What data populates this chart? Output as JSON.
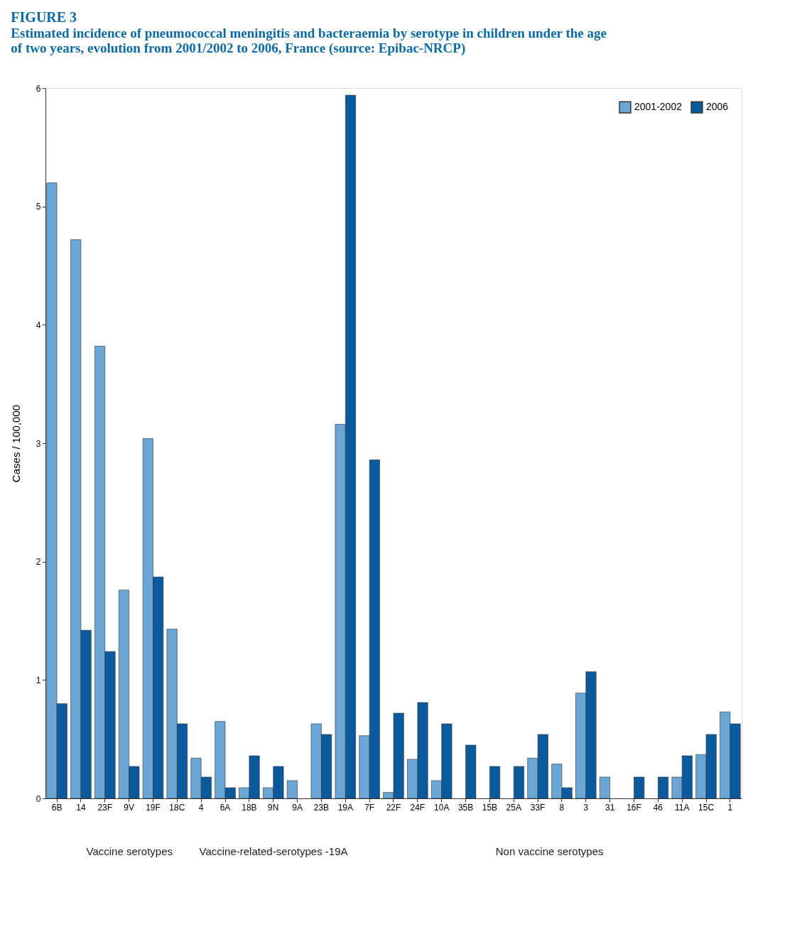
{
  "chart_data": {
    "type": "bar",
    "title": "FIGURE 3",
    "subtitle": "Estimated incidence of pneumococcal meningitis and bacteraemia by serotype in children under the age of two years, evolution from 2001/2002 to 2006, France (source: Epibac-NRCP)",
    "ylabel": "Cases / 100,000",
    "categories": [
      "6B",
      "14",
      "23F",
      "9V",
      "19F",
      "18C",
      "4",
      "6A",
      "18B",
      "9N",
      "9A",
      "23B",
      "19A",
      "7F",
      "22F",
      "24F",
      "10A",
      "35B",
      "15B",
      "25A",
      "33F",
      "8",
      "3",
      "31",
      "16F",
      "46",
      "11A",
      "15C",
      "1"
    ],
    "series": [
      {
        "name": "2001-2002",
        "color": "#6aa6d6",
        "values": [
          5.2,
          4.72,
          3.82,
          1.76,
          3.04,
          1.43,
          0.34,
          0.65,
          0.09,
          0.09,
          0.15,
          0.63,
          3.16,
          0.53,
          0.05,
          0.33,
          0.15,
          0,
          0,
          0,
          0.34,
          0.29,
          0.89,
          0.18,
          0,
          0,
          0.18,
          0.37,
          0.73
        ]
      },
      {
        "name": "2006",
        "color": "#0b5a9e",
        "values": [
          0.8,
          1.42,
          1.24,
          0.27,
          1.87,
          0.63,
          0.18,
          0.09,
          0.36,
          0.27,
          0,
          0.54,
          5.94,
          2.86,
          0.72,
          0.81,
          0.63,
          0.45,
          0.27,
          0.27,
          0.54,
          0.09,
          1.07,
          0,
          0.18,
          0.18,
          0.36,
          0.54,
          0.63
        ]
      }
    ],
    "ylim": [
      0,
      6
    ],
    "yticks": [
      0,
      1,
      2,
      3,
      4,
      5,
      6
    ],
    "grid": false,
    "legend": "top right",
    "annotations": [
      "Vaccine serotypes",
      "Vaccine-related-serotypes -19A",
      "Non vaccine serotypes"
    ]
  }
}
